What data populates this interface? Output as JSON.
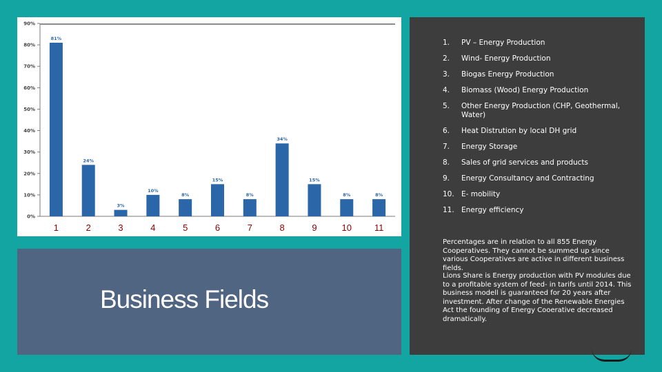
{
  "slide": {
    "title": "Business Fields",
    "colors": {
      "background": "#12a5a2",
      "bar": "#2a66a8",
      "title_panel": "#4f6582",
      "info_panel": "#3d3d3d",
      "category_numbers": "#8b0000"
    }
  },
  "legend": {
    "items": [
      {
        "num": "1.",
        "label": "PV – Energy Production"
      },
      {
        "num": "2.",
        "label": "Wind- Energy Production"
      },
      {
        "num": "3.",
        "label": "Biogas Energy Production"
      },
      {
        "num": "4.",
        "label": "Biomass (Wood) Energy Production"
      },
      {
        "num": "5.",
        "label": "Other Energy Production (CHP, Geothermal, Water)"
      },
      {
        "num": "6.",
        "label": "Heat Distrution by local DH grid"
      },
      {
        "num": "7.",
        "label": "Energy Storage"
      },
      {
        "num": "8.",
        "label": "Sales of grid services and products"
      },
      {
        "num": "9.",
        "label": "Energy Consultancy and Contracting"
      },
      {
        "num": "10.",
        "label": "E- mobility"
      },
      {
        "num": "11.",
        "label": "Energy efficiency"
      }
    ]
  },
  "notes": {
    "percentages": "Percentages are in relation to all 855 Energy Cooperatives. They cannot be summed up since various Cooperatives are active in different business fields.",
    "lions_share": "Lions Share is Energy production with PV modules due to a profitable system of feed- in tarifs until 2014. This business modell is guaranteed for 20 years after investment. After change of the Renewable Energies Act the founding of Energy Cooerative decreased dramatically."
  },
  "chart_data": {
    "type": "bar",
    "categories": [
      "1",
      "2",
      "3",
      "4",
      "5",
      "6",
      "7",
      "8",
      "9",
      "10",
      "11"
    ],
    "values": [
      81,
      24,
      3,
      10,
      8,
      15,
      8,
      34,
      15,
      8,
      8
    ],
    "data_labels": [
      "81%",
      "24%",
      "3%",
      "10%",
      "8%",
      "15%",
      "8%",
      "34%",
      "15%",
      "8%",
      "8%"
    ],
    "ylim": [
      0,
      90
    ],
    "y_ticks": [
      0,
      10,
      20,
      30,
      40,
      50,
      60,
      70,
      80,
      90
    ],
    "y_tick_labels": [
      "0%",
      "10%",
      "20%",
      "30%",
      "40%",
      "50%",
      "60%",
      "70%",
      "80%",
      "90%"
    ],
    "grid": false,
    "title": "",
    "xlabel": "",
    "ylabel": ""
  }
}
